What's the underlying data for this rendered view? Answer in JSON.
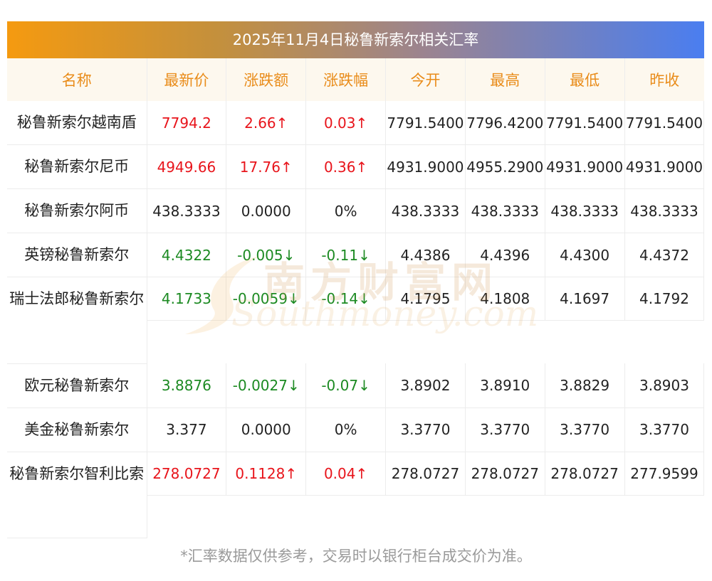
{
  "title": "2025年11月4日秘鲁新索尔相关汇率",
  "headers": [
    "名称",
    "最新价",
    "涨跌额",
    "涨跌幅",
    "今开",
    "最高",
    "最低",
    "昨收"
  ],
  "rows": [
    {
      "name": "秘鲁新索尔越南盾",
      "latest": "7794.2",
      "change": "2.66↑",
      "pct": "0.03↑",
      "open": "7791.5400",
      "high": "7796.4200",
      "low": "7791.5400",
      "prev": "7791.5400",
      "trend": "up"
    },
    {
      "name": "秘鲁新索尔尼币",
      "latest": "4949.66",
      "change": "17.76↑",
      "pct": "0.36↑",
      "open": "4931.9000",
      "high": "4955.2900",
      "low": "4931.9000",
      "prev": "4931.9000",
      "trend": "up"
    },
    {
      "name": "秘鲁新索尔阿币",
      "latest": "438.3333",
      "change": "0.0000",
      "pct": "0%",
      "open": "438.3333",
      "high": "438.3333",
      "low": "438.3333",
      "prev": "438.3333",
      "trend": "flat"
    },
    {
      "name": "英镑秘鲁新索尔",
      "latest": "4.4322",
      "change": "-0.005↓",
      "pct": "-0.11↓",
      "open": "4.4386",
      "high": "4.4396",
      "low": "4.4300",
      "prev": "4.4372",
      "trend": "down"
    },
    {
      "name": "瑞士法郎秘鲁新索尔",
      "latest": "4.1733",
      "change": "-0.0059↓",
      "pct": "-0.14↓",
      "open": "4.1795",
      "high": "4.1808",
      "low": "4.1697",
      "prev": "4.1792",
      "trend": "down"
    },
    {
      "name": "欧元秘鲁新索尔",
      "latest": "3.8876",
      "change": "-0.0027↓",
      "pct": "-0.07↓",
      "open": "3.8902",
      "high": "3.8910",
      "low": "3.8829",
      "prev": "3.8903",
      "trend": "down"
    },
    {
      "name": "美金秘鲁新索尔",
      "latest": "3.377",
      "change": "0.0000",
      "pct": "0%",
      "open": "3.3770",
      "high": "3.3770",
      "low": "3.3770",
      "prev": "3.3770",
      "trend": "flat"
    },
    {
      "name": "秘鲁新索尔智利比索",
      "latest": "278.0727",
      "change": "0.1128↑",
      "pct": "0.04↑",
      "open": "278.0727",
      "high": "278.0727",
      "low": "278.0727",
      "prev": "277.9599",
      "trend": "up"
    }
  ],
  "footnote": "*汇率数据仅供参考，交易时以银行柜台成交价为准。",
  "watermark": {
    "cn": "南方财富网",
    "en": "Southmoney.com"
  },
  "colors": {
    "up": "#e8141b",
    "down": "#1c8a22",
    "header_text": "#e98c1a",
    "banner_start": "#f59a10",
    "banner_end": "#4a7ef0"
  }
}
